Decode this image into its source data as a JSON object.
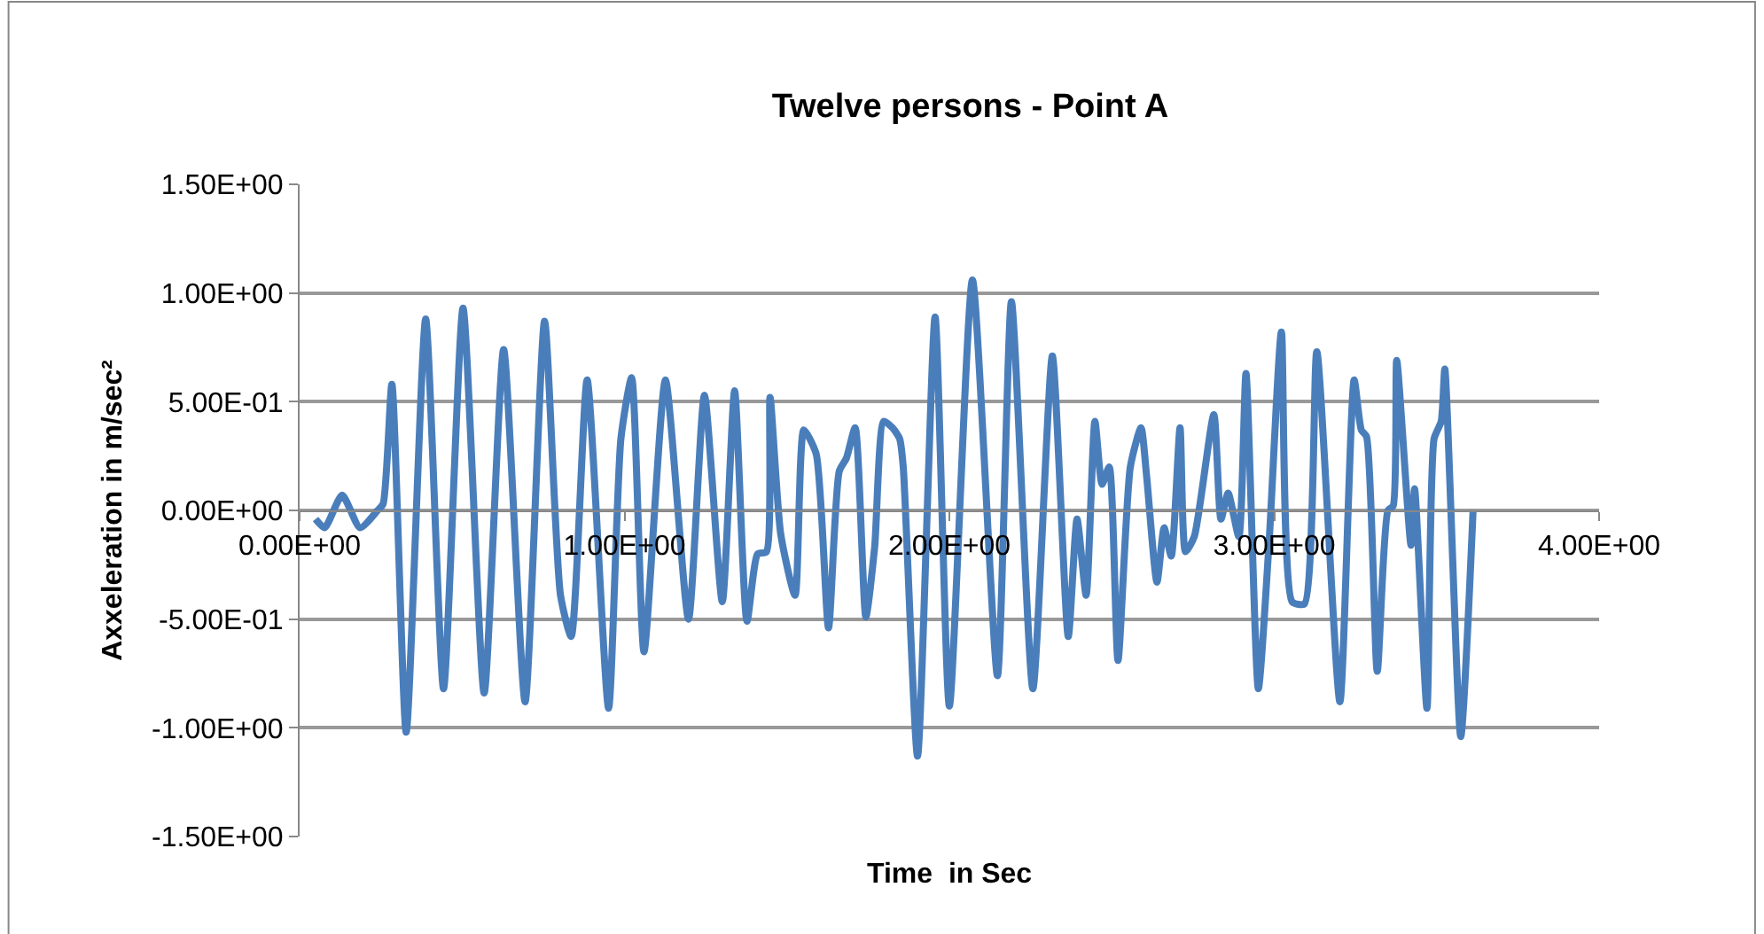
{
  "chart_data": {
    "type": "line",
    "title": "Twelve persons - Point A",
    "xlabel": "Time  in Sec",
    "ylabel": "Axxeleration in m/sec²",
    "xlim": [
      0,
      4
    ],
    "xticks": [
      {
        "value": 0,
        "label": "0.00E+00"
      },
      {
        "value": 1,
        "label": "1.00E+00"
      },
      {
        "value": 2,
        "label": "2.00E+00"
      },
      {
        "value": 3,
        "label": "3.00E+00"
      },
      {
        "value": 4,
        "label": "4.00E+00"
      }
    ],
    "ylim": [
      -1.5,
      1.5
    ],
    "yticks": [
      {
        "value": -1.5,
        "label": "-1.50E+00"
      },
      {
        "value": -1,
        "label": "-1.00E+00"
      },
      {
        "value": -0.5,
        "label": "-5.00E-01"
      },
      {
        "value": 0,
        "label": "0.00E+00"
      },
      {
        "value": 0.5,
        "label": "5.00E-01"
      },
      {
        "value": 1,
        "label": "1.00E+00"
      },
      {
        "value": 1.5,
        "label": "1.50E+00"
      }
    ],
    "grid": "y",
    "marker": "none",
    "line_style": "solid",
    "series": [
      {
        "color": "#4a7ebb",
        "x": [
          0.049,
          0.077,
          0.131,
          0.186,
          0.24,
          0.257,
          0.284,
          0.328,
          0.388,
          0.443,
          0.503,
          0.568,
          0.628,
          0.694,
          0.754,
          0.803,
          0.836,
          0.885,
          0.951,
          0.989,
          1.022,
          1.06,
          1.126,
          1.197,
          1.246,
          1.301,
          1.339,
          1.377,
          1.41,
          1.437,
          1.448,
          1.481,
          1.525,
          1.552,
          1.59,
          1.628,
          1.661,
          1.683,
          1.71,
          1.743,
          1.77,
          1.798,
          1.825,
          1.847,
          1.858,
          1.902,
          1.956,
          2.0,
          2.071,
          2.148,
          2.191,
          2.257,
          2.317,
          2.366,
          2.393,
          2.421,
          2.448,
          2.47,
          2.492,
          2.519,
          2.557,
          2.59,
          2.607,
          2.639,
          2.661,
          2.683,
          2.71,
          2.727,
          2.754,
          2.814,
          2.836,
          2.858,
          2.891,
          2.913,
          2.951,
          2.984,
          3.022,
          3.055,
          3.093,
          3.131,
          3.202,
          3.246,
          3.268,
          3.284,
          3.317,
          3.35,
          3.366,
          3.377,
          3.421,
          3.432,
          3.47,
          3.492,
          3.514,
          3.525,
          3.574,
          3.612
        ],
        "values": [
          -0.04,
          -0.08,
          0.07,
          -0.08,
          0.0,
          0.03,
          0.58,
          -1.02,
          0.88,
          -0.82,
          0.93,
          -0.84,
          0.74,
          -0.88,
          0.87,
          -0.39,
          -0.58,
          0.6,
          -0.91,
          0.33,
          0.61,
          -0.65,
          0.6,
          -0.5,
          0.53,
          -0.42,
          0.55,
          -0.51,
          -0.2,
          -0.19,
          0.52,
          -0.11,
          -0.39,
          0.37,
          0.26,
          -0.54,
          0.18,
          0.24,
          0.38,
          -0.49,
          -0.17,
          0.41,
          0.38,
          0.33,
          0.2,
          -1.13,
          0.89,
          -0.9,
          1.06,
          -0.76,
          0.96,
          -0.82,
          0.71,
          -0.58,
          -0.04,
          -0.39,
          0.41,
          0.12,
          0.2,
          -0.69,
          0.2,
          0.38,
          0.16,
          -0.33,
          -0.08,
          -0.21,
          0.38,
          -0.19,
          -0.12,
          0.44,
          -0.04,
          0.08,
          -0.12,
          0.63,
          -0.82,
          -0.15,
          0.82,
          -0.42,
          -0.43,
          0.73,
          -0.88,
          0.6,
          0.37,
          0.34,
          -0.74,
          0.0,
          0.02,
          0.69,
          -0.16,
          0.1,
          -0.91,
          0.33,
          0.41,
          0.65,
          -1.04,
          0.0
        ]
      }
    ]
  }
}
